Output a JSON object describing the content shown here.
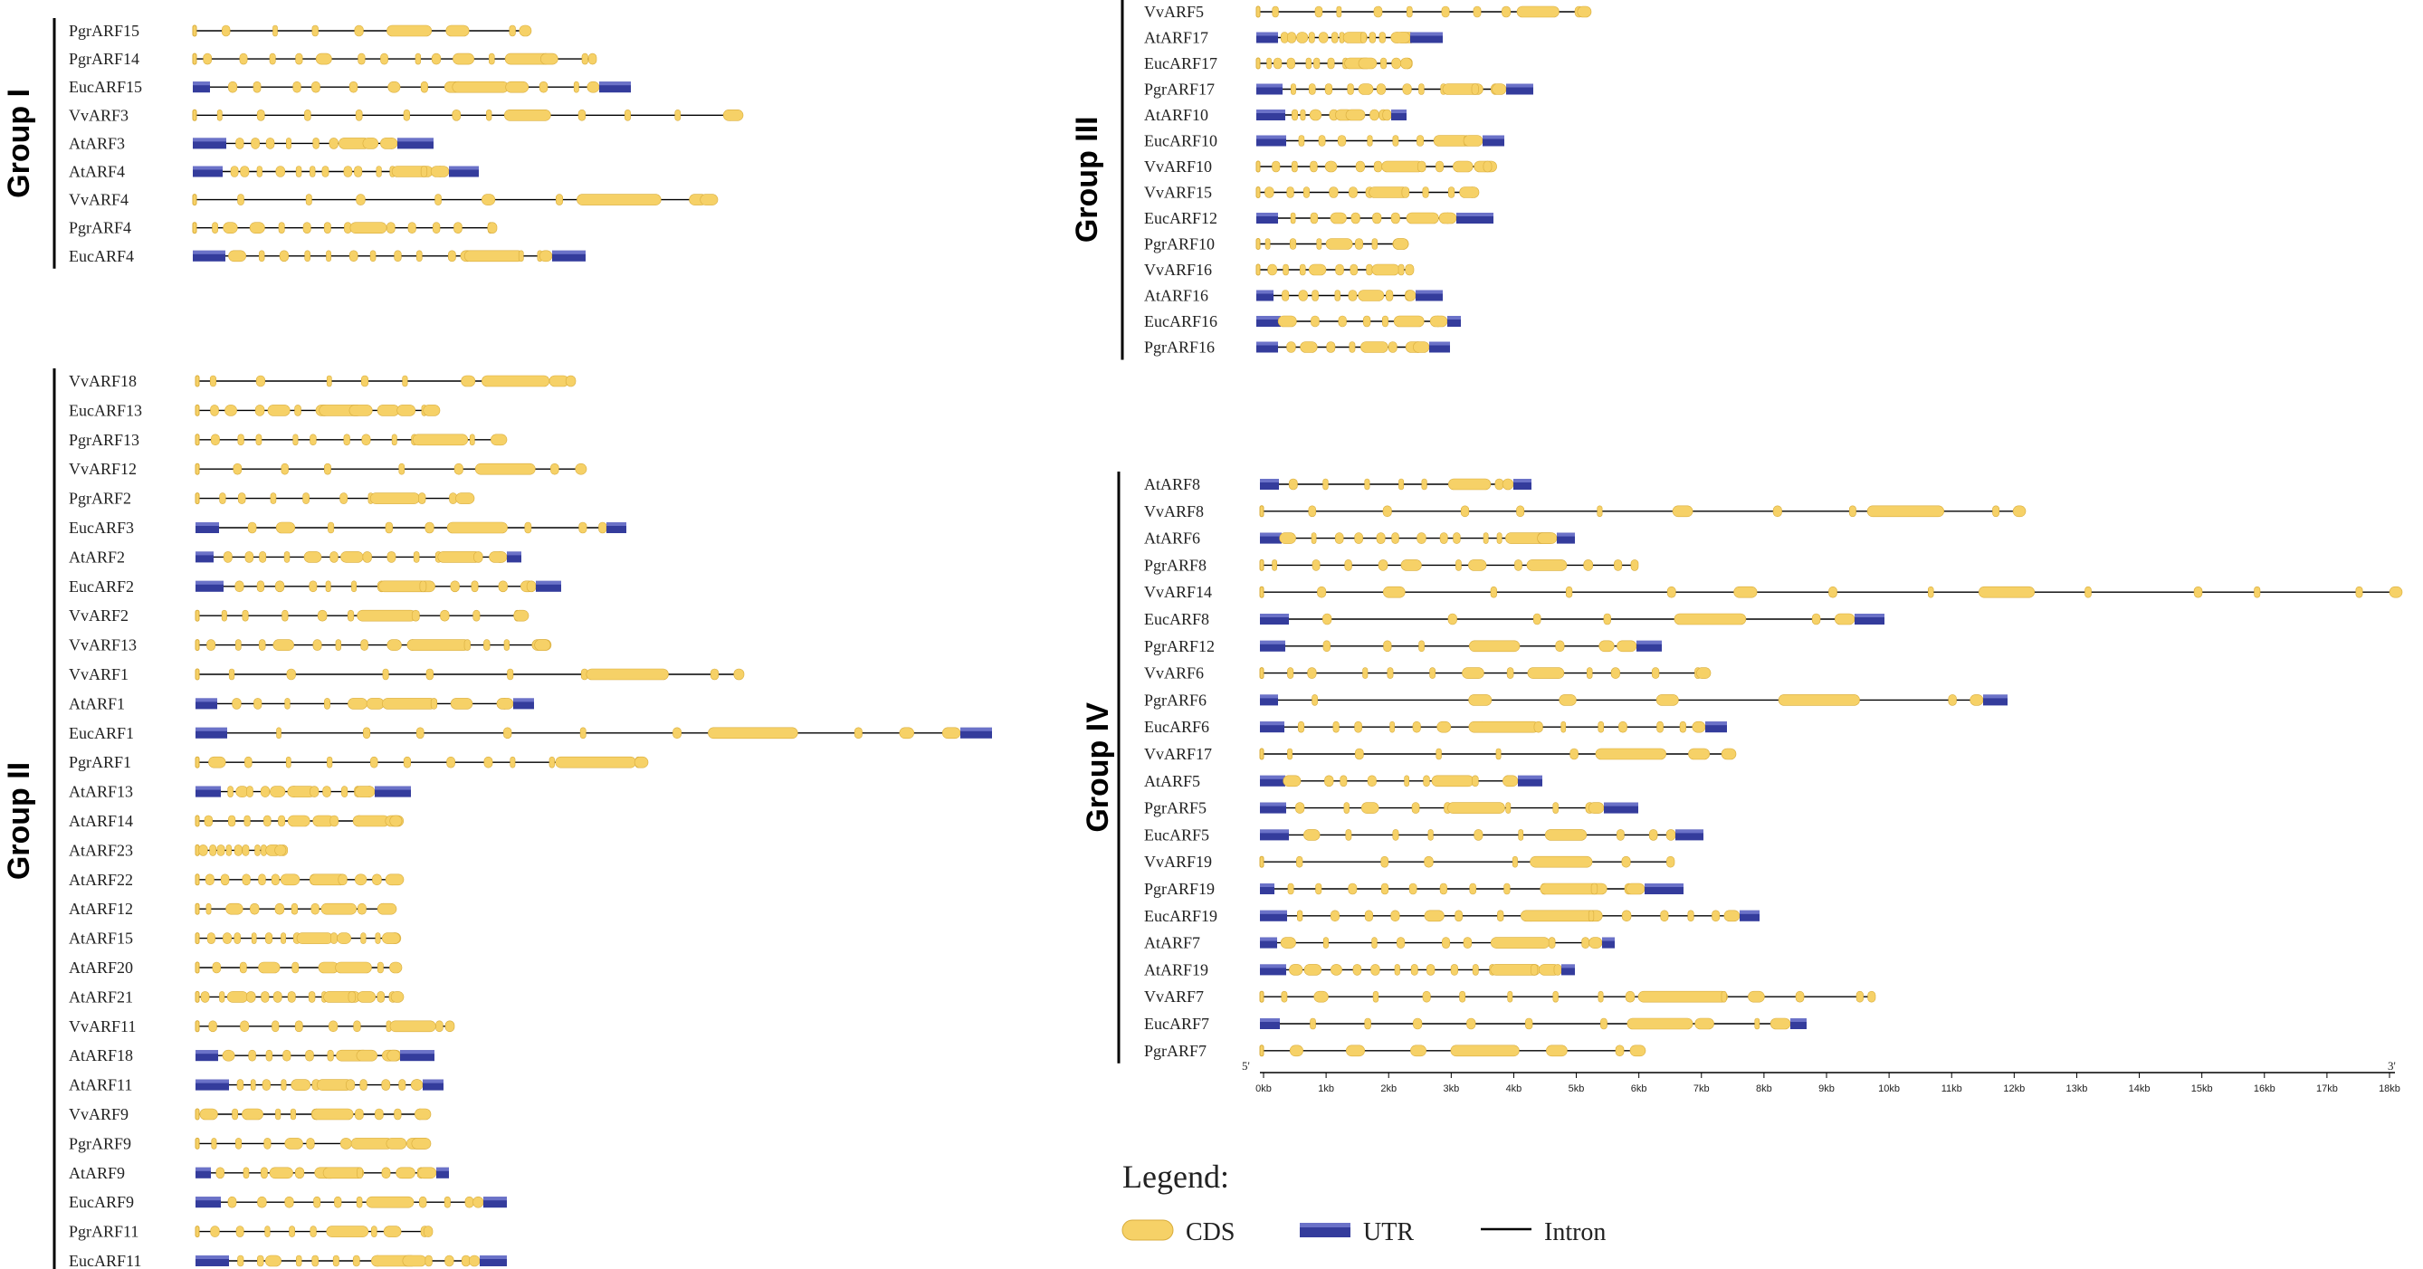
{
  "colors": {
    "cds": "#f6d167",
    "cds_stroke": "#d9ad3c",
    "utr": "#343c9c",
    "utr_light": "#6b72c8",
    "intron": "#000000"
  },
  "groups": [
    {
      "label": "Group I",
      "genes": [
        "PgrARF15",
        "PgrARF14",
        "EucARF15",
        "VvARF3",
        "AtARF3",
        "AtARF4",
        "VvARF4",
        "PgrARF4",
        "EucARF4"
      ]
    },
    {
      "label": "Group II",
      "genes": [
        "VvARF18",
        "EucARF13",
        "PgrARF13",
        "VvARF12",
        "PgrARF2",
        "EucARF3",
        "AtARF2",
        "EucARF2",
        "VvARF2",
        "VvARF13",
        "VvARF1",
        "AtARF1",
        "EucARF1",
        "PgrARF1",
        "AtARF13",
        "AtARF14",
        "AtARF23",
        "AtARF22",
        "AtARF12",
        "AtARF15",
        "AtARF20",
        "AtARF21",
        "VvARF11",
        "AtARF18",
        "AtARF11",
        "VvARF9",
        "PgrARF9",
        "AtARF9",
        "EucARF9",
        "PgrARF11",
        "EucARF11"
      ]
    },
    {
      "label": "Group III",
      "genes": [
        "VvARF5",
        "AtARF17",
        "EucARF17",
        "PgrARF17",
        "AtARF10",
        "EucARF10",
        "VvARF10",
        "VvARF15",
        "EucARF12",
        "PgrARF10",
        "VvARF16",
        "AtARF16",
        "EucARF16",
        "PgrARF16"
      ]
    },
    {
      "label": "Group IV",
      "genes": [
        "AtARF8",
        "VvARF8",
        "AtARF6",
        "PgrARF8",
        "VvARF14",
        "EucARF8",
        "PgrARF12",
        "VvARF6",
        "PgrARF6",
        "EucARF6",
        "VvARF17",
        "AtARF5",
        "PgrARF5",
        "EucARF5",
        "VvARF19",
        "PgrARF19",
        "EucARF19",
        "AtARF7",
        "AtARF19",
        "VvARF7",
        "EucARF7",
        "PgrARF7"
      ]
    }
  ],
  "axis": {
    "start_label": "5'",
    "end_label": "3'",
    "ticks": [
      "0kb",
      "1kb",
      "2kb",
      "3kb",
      "4kb",
      "5kb",
      "6kb",
      "7kb",
      "8kb",
      "9kb",
      "10kb",
      "11kb",
      "12kb",
      "13kb",
      "14kb",
      "15kb",
      "16kb",
      "17kb",
      "18kb"
    ]
  },
  "legend": {
    "title": "Legend:",
    "items": [
      {
        "label": "CDS",
        "kind": "cds"
      },
      {
        "label": "UTR",
        "kind": "utr"
      },
      {
        "label": "Intron",
        "kind": "intron"
      }
    ]
  }
}
